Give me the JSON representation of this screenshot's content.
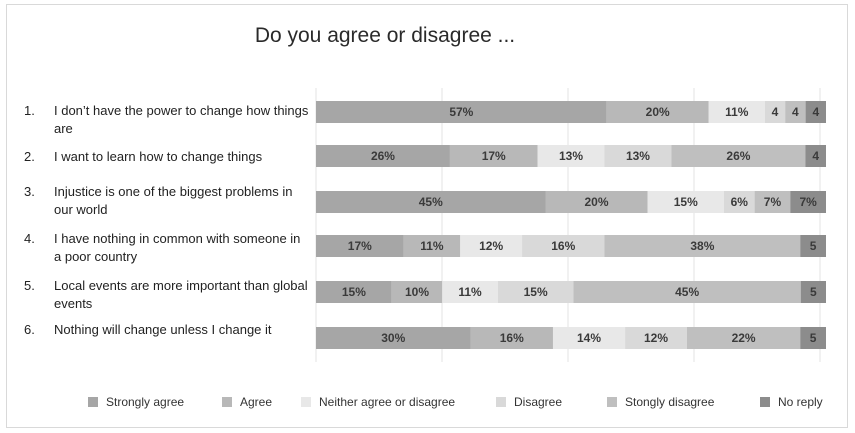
{
  "chart_data": {
    "type": "bar",
    "stacked": true,
    "orientation": "horizontal",
    "title": "Do you agree or disagree ...",
    "categories": [
      {
        "num": "1.",
        "text": "I don’t have the power to change how things are"
      },
      {
        "num": "2.",
        "text": "I want to learn how to change things"
      },
      {
        "num": "3.",
        "text": "Injustice is one of the biggest problems in our world"
      },
      {
        "num": "4.",
        "text": "I have nothing in common with someone in a poor country"
      },
      {
        "num": "5.",
        "text": "Local events are more important than global events"
      },
      {
        "num": "6.",
        "text": "Nothing will change unless I change it"
      }
    ],
    "series": [
      {
        "name": "Strongly agree",
        "color": "#a6a6a6",
        "values": [
          57,
          26,
          45,
          17,
          15,
          30
        ],
        "labels": [
          "57%",
          "26%",
          "45%",
          "17%",
          "15%",
          "30%"
        ]
      },
      {
        "name": "Agree",
        "color": "#b8b8b8",
        "values": [
          20,
          17,
          20,
          11,
          10,
          16
        ],
        "labels": [
          "20%",
          "17%",
          "20%",
          "11%",
          "10%",
          "16%"
        ]
      },
      {
        "name": "Neither agree or disagree",
        "color": "#e8e8e8",
        "values": [
          11,
          13,
          15,
          12,
          11,
          14
        ],
        "labels": [
          "11%",
          "13%",
          "15%",
          "12%",
          "11%",
          "14%"
        ]
      },
      {
        "name": "Disagree",
        "color": "#d9d9d9",
        "values": [
          4,
          13,
          6,
          16,
          15,
          12
        ],
        "labels": [
          "4",
          "13%",
          "6%",
          "16%",
          "15%",
          "12%"
        ]
      },
      {
        "name": "Stongly disagree",
        "color": "#bfbfbf",
        "values": [
          4,
          26,
          7,
          38,
          45,
          22
        ],
        "labels": [
          "4",
          "26%",
          "7%",
          "38%",
          "45%",
          "22%"
        ]
      },
      {
        "name": "No reply",
        "color": "#8c8c8c",
        "values": [
          4,
          4,
          7,
          5,
          5,
          5
        ],
        "labels": [
          "4",
          "4",
          "7%",
          "5",
          "5",
          "5"
        ]
      }
    ],
    "grid": true,
    "legend_position": "bottom"
  }
}
